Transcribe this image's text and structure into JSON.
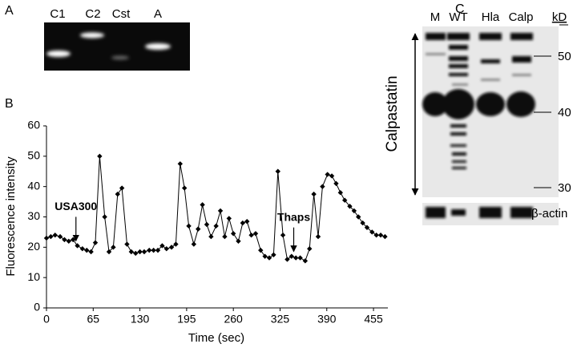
{
  "panel_a": {
    "label": "A",
    "lanes": [
      "C1",
      "C2",
      "Cst",
      "A"
    ]
  },
  "panel_b": {
    "label": "B"
  },
  "chart_data": {
    "type": "line",
    "x_label": "Time (sec)",
    "y_label": "Fluorescence intensity",
    "x": [
      0,
      6,
      12,
      19,
      25,
      31,
      37,
      43,
      50,
      56,
      62,
      68,
      74,
      81,
      87,
      93,
      99,
      105,
      112,
      118,
      124,
      130,
      136,
      143,
      149,
      155,
      161,
      167,
      174,
      180,
      186,
      192,
      198,
      205,
      211,
      217,
      223,
      229,
      236,
      242,
      248,
      254,
      260,
      267,
      273,
      279,
      285,
      291,
      298,
      304,
      310,
      316,
      322,
      329,
      335,
      341,
      347,
      353,
      360,
      366,
      372,
      378,
      384,
      391,
      397,
      403,
      409,
      415,
      422,
      428,
      434,
      440,
      446,
      453,
      459,
      465,
      471
    ],
    "values": [
      23,
      23.5,
      24,
      23.5,
      22.5,
      22,
      22.5,
      20.5,
      19.5,
      19,
      18.5,
      21.5,
      50,
      30,
      18.5,
      20,
      37.5,
      39.5,
      21,
      18.5,
      18,
      18.5,
      18.5,
      19,
      19,
      19,
      20.5,
      19.5,
      20,
      21,
      47.5,
      39.5,
      27,
      21,
      26,
      34,
      27.5,
      23.5,
      27,
      32,
      23.5,
      29.5,
      24.5,
      22,
      28,
      28.5,
      24,
      24.5,
      19,
      17,
      16.5,
      17.5,
      45,
      24,
      16,
      17,
      16.5,
      16.5,
      15.5,
      19.5,
      37.5,
      23.5,
      40,
      44,
      43.5,
      41,
      38,
      35.5,
      33.5,
      32,
      30,
      28,
      26.5,
      25,
      24,
      24,
      23.5
    ],
    "color": "#000000",
    "xlim": [
      0,
      475
    ],
    "xticks": [
      0,
      65,
      130,
      195,
      260,
      325,
      390,
      455
    ],
    "ylim": [
      0,
      60
    ],
    "yticks": [
      0,
      10,
      20,
      30,
      40,
      50,
      60
    ],
    "grid": false,
    "annotations": [
      {
        "text": "USA300",
        "x": 41
      },
      {
        "text": "Thaps",
        "x": 344
      }
    ]
  },
  "panel_c": {
    "label": "C",
    "lanes": [
      "M",
      "WT",
      "Hla",
      "Calp"
    ],
    "unit": "kD",
    "markers": [
      "50",
      "40",
      "30"
    ],
    "protein": "Calpastatin",
    "loading_control": "β-actin"
  }
}
